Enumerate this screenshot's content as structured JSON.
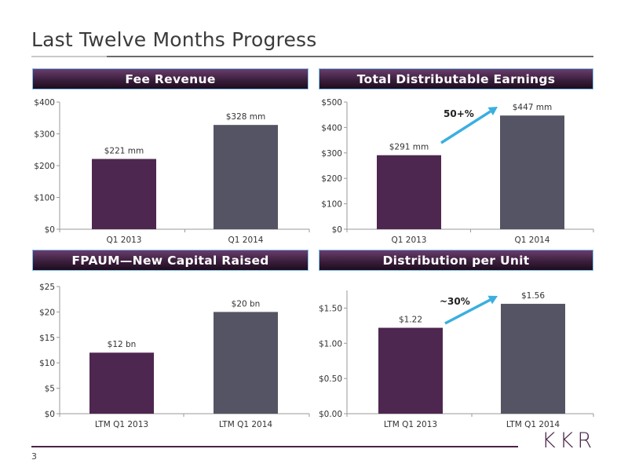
{
  "page": {
    "title": "Last Twelve Months Progress",
    "page_number": "3",
    "logo": "KKR"
  },
  "colors": {
    "bar_primary": "#4e2750",
    "bar_secondary": "#545464",
    "arrow": "#3aafe0",
    "header_border": "#7fc3ea"
  },
  "chart_data": [
    {
      "type": "bar",
      "title": "Fee Revenue",
      "categories": [
        "Q1 2013",
        "Q1 2014"
      ],
      "values": [
        221,
        328
      ],
      "data_labels": [
        "$221 mm",
        "$328 mm"
      ],
      "ylim": [
        0,
        400
      ],
      "yticks": [
        0,
        100,
        200,
        300,
        400
      ],
      "ytick_labels": [
        "$0",
        "$100",
        "$200",
        "$300",
        "$400"
      ],
      "annotation": ""
    },
    {
      "type": "bar",
      "title": "Total Distributable Earnings",
      "categories": [
        "Q1 2013",
        "Q1 2014"
      ],
      "values": [
        291,
        447
      ],
      "data_labels": [
        "$291 mm",
        "$447 mm"
      ],
      "ylim": [
        0,
        500
      ],
      "yticks": [
        0,
        100,
        200,
        300,
        400,
        500
      ],
      "ytick_labels": [
        "$0",
        "$100",
        "$200",
        "$300",
        "$400",
        "$500"
      ],
      "annotation": "50+%"
    },
    {
      "type": "bar",
      "title": "FPAUM—New Capital Raised",
      "categories": [
        "LTM Q1 2013",
        "LTM Q1 2014"
      ],
      "values": [
        12,
        20
      ],
      "data_labels": [
        "$12 bn",
        "$20 bn"
      ],
      "ylim": [
        0,
        25
      ],
      "yticks": [
        0,
        5,
        10,
        15,
        20,
        25
      ],
      "ytick_labels": [
        "$0",
        "$5",
        "$10",
        "$15",
        "$20",
        "$25"
      ],
      "annotation": ""
    },
    {
      "type": "bar",
      "title": "Distribution per Unit",
      "categories": [
        "LTM Q1 2013",
        "LTM Q1 2014"
      ],
      "values": [
        1.22,
        1.56
      ],
      "data_labels": [
        "$1.22",
        "$1.56"
      ],
      "ylim": [
        0,
        1.75
      ],
      "yticks": [
        0,
        0.5,
        1.0,
        1.5
      ],
      "ytick_labels": [
        "$0.00",
        "$0.50",
        "$1.00",
        "$1.50"
      ],
      "annotation": "~30%"
    }
  ]
}
